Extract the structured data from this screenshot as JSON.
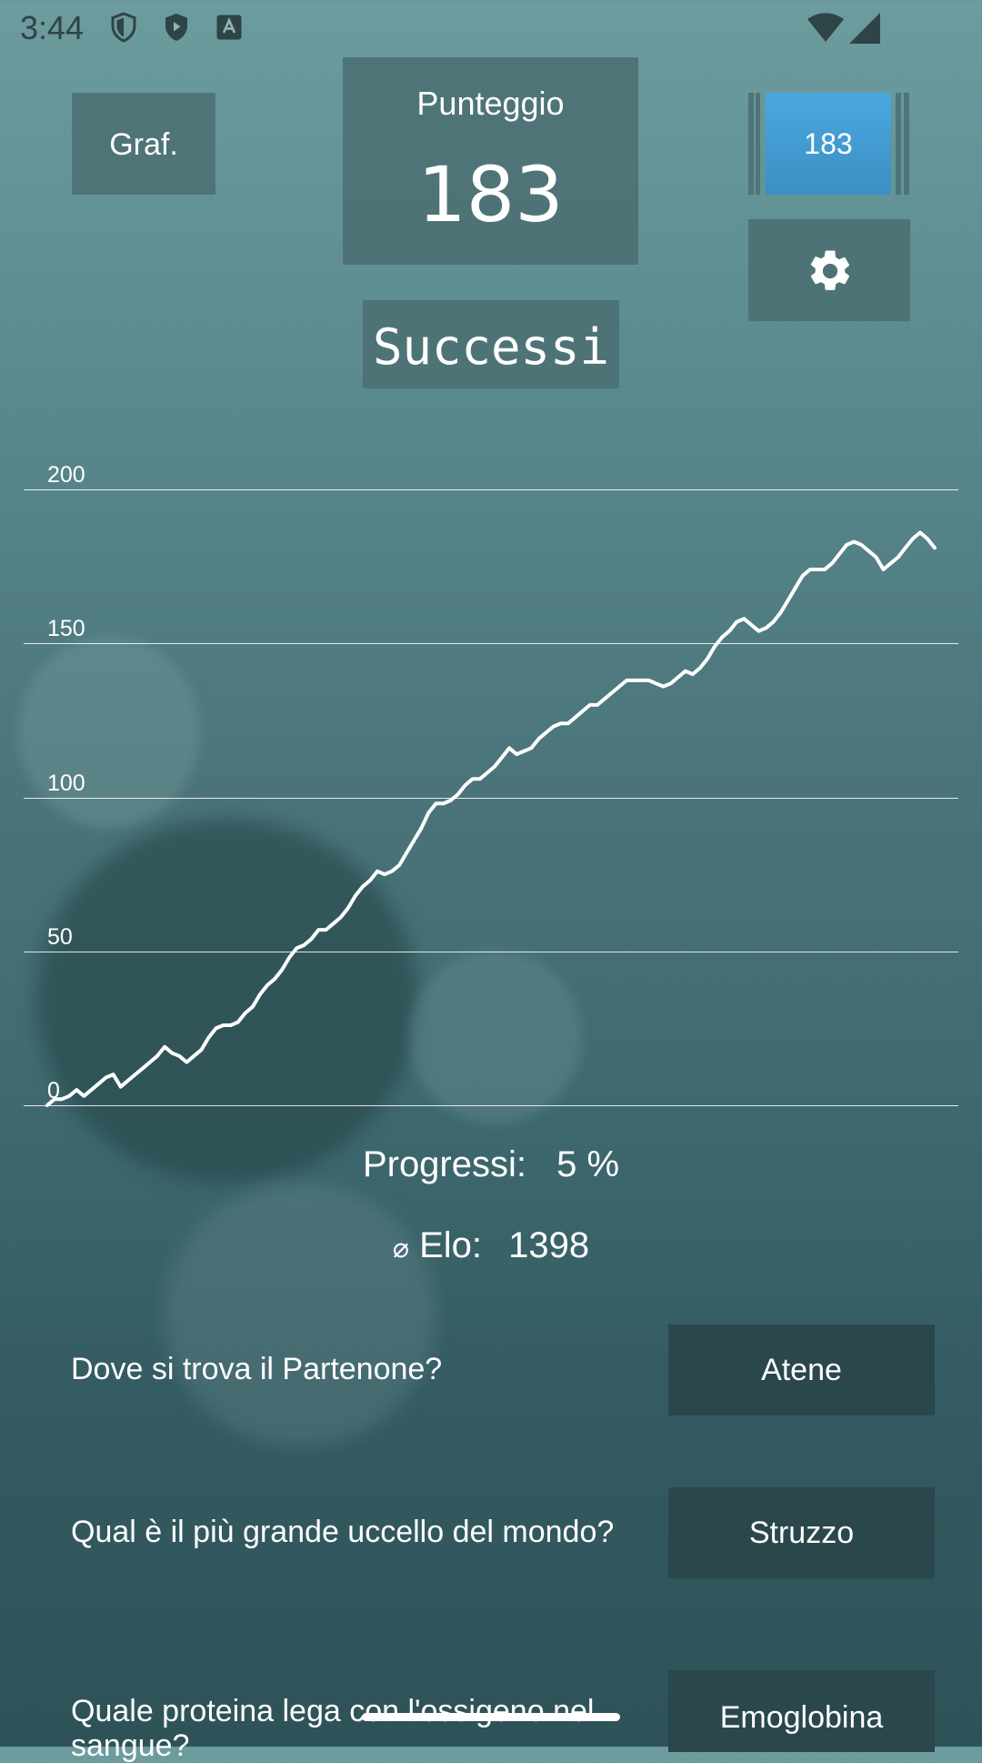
{
  "status_bar": {
    "time": "3:44"
  },
  "header": {
    "graph_button_label": "Graf.",
    "score_label": "Punteggio",
    "score_value": "183",
    "counter_value": "183",
    "achievements_label": "Successi"
  },
  "chart_data": {
    "type": "line",
    "title": "",
    "xlabel": "",
    "ylabel": "",
    "ylim": [
      0,
      200
    ],
    "yticks": [
      "0",
      "50",
      "100",
      "150",
      "200"
    ],
    "grid": true,
    "series": [
      {
        "values": [
          0,
          2,
          2,
          3,
          5,
          3,
          5,
          7,
          9,
          10,
          6,
          8,
          10,
          12,
          14,
          16,
          19,
          17,
          16,
          14,
          16,
          18,
          22,
          25,
          26,
          26,
          27,
          30,
          32,
          36,
          39,
          41,
          44,
          48,
          51,
          52,
          54,
          57,
          57,
          59,
          61,
          64,
          68,
          71,
          73,
          76,
          75,
          76,
          78,
          82,
          86,
          90,
          95,
          98,
          98,
          99,
          101,
          104,
          106,
          106,
          108,
          110,
          113,
          116,
          114,
          115,
          116,
          119,
          121,
          123,
          124,
          124,
          126,
          128,
          130,
          130,
          132,
          134,
          136,
          138,
          138,
          138,
          138,
          137,
          136,
          137,
          139,
          141,
          140,
          142,
          145,
          149,
          152,
          154,
          157,
          158,
          156,
          154,
          155,
          157,
          160,
          164,
          168,
          172,
          174,
          174,
          174,
          176,
          179,
          182,
          183,
          182,
          180,
          178,
          174,
          176,
          178,
          181,
          184,
          186,
          184,
          181
        ]
      }
    ]
  },
  "stats": {
    "progress_label": "Progressi:",
    "progress_value": "5 %",
    "elo_symbol": "⌀",
    "elo_label": "Elo:",
    "elo_value": "1398"
  },
  "qa": [
    {
      "question": "Dove si trova il Partenone?",
      "answer": "Atene"
    },
    {
      "question": "Qual è il più grande uccello del mondo?",
      "answer": "Struzzo"
    },
    {
      "question_line1": "Quale proteina lega con l'ossigeno nel",
      "question_line2": "sangue?",
      "answer": "Emoglobina"
    }
  ],
  "icons": {
    "settings": "gear-icon",
    "wifi": "wifi-icon",
    "signal": "signal-icon"
  }
}
